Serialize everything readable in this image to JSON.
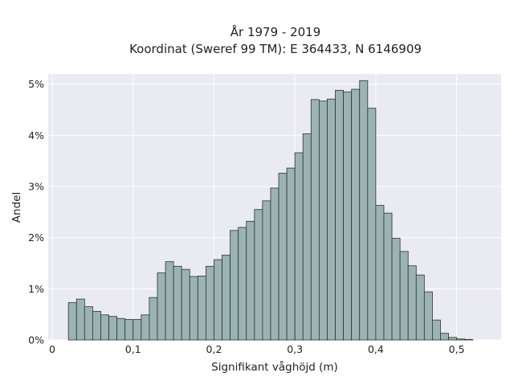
{
  "chart_data": {
    "type": "bar",
    "title_line1": "År 1979 - 2019",
    "title_line2": "Koordinat (Sweref 99 TM): E 364433, N 6146909",
    "xlabel": "Signifikant våghöjd (m)",
    "ylabel": "Andel",
    "xlim": [
      -0.005,
      0.555
    ],
    "ylim": [
      0,
      5.2
    ],
    "x_ticks": [
      {
        "value": 0,
        "label": "0"
      },
      {
        "value": 0.1,
        "label": "0,1"
      },
      {
        "value": 0.2,
        "label": "0,2"
      },
      {
        "value": 0.3,
        "label": "0,3"
      },
      {
        "value": 0.4,
        "label": "0,4"
      },
      {
        "value": 0.5,
        "label": "0,5"
      }
    ],
    "y_ticks": [
      {
        "value": 0,
        "label": "0%"
      },
      {
        "value": 1,
        "label": "1%"
      },
      {
        "value": 2,
        "label": "2%"
      },
      {
        "value": 3,
        "label": "3%"
      },
      {
        "value": 4,
        "label": "4%"
      },
      {
        "value": 5,
        "label": "5%"
      }
    ],
    "grid": true,
    "bin_start": 0.02,
    "bin_width": 0.01,
    "values": [
      0.73,
      0.8,
      0.65,
      0.56,
      0.49,
      0.46,
      0.42,
      0.4,
      0.4,
      0.49,
      0.83,
      1.31,
      1.53,
      1.44,
      1.38,
      1.24,
      1.25,
      1.44,
      1.57,
      1.66,
      2.14,
      2.2,
      2.32,
      2.55,
      2.72,
      2.97,
      3.26,
      3.36,
      3.66,
      4.03,
      4.7,
      4.67,
      4.71,
      4.88,
      4.85,
      4.9,
      5.07,
      4.53,
      2.63,
      2.48,
      1.99,
      1.73,
      1.45,
      1.27,
      0.94,
      0.39,
      0.13,
      0.05,
      0.02,
      0.01
    ],
    "colors": {
      "background": "#eaeaf2",
      "bar_fill": "#9bb3b2",
      "bar_edge": "#2d3333",
      "grid": "#ffffff"
    }
  }
}
